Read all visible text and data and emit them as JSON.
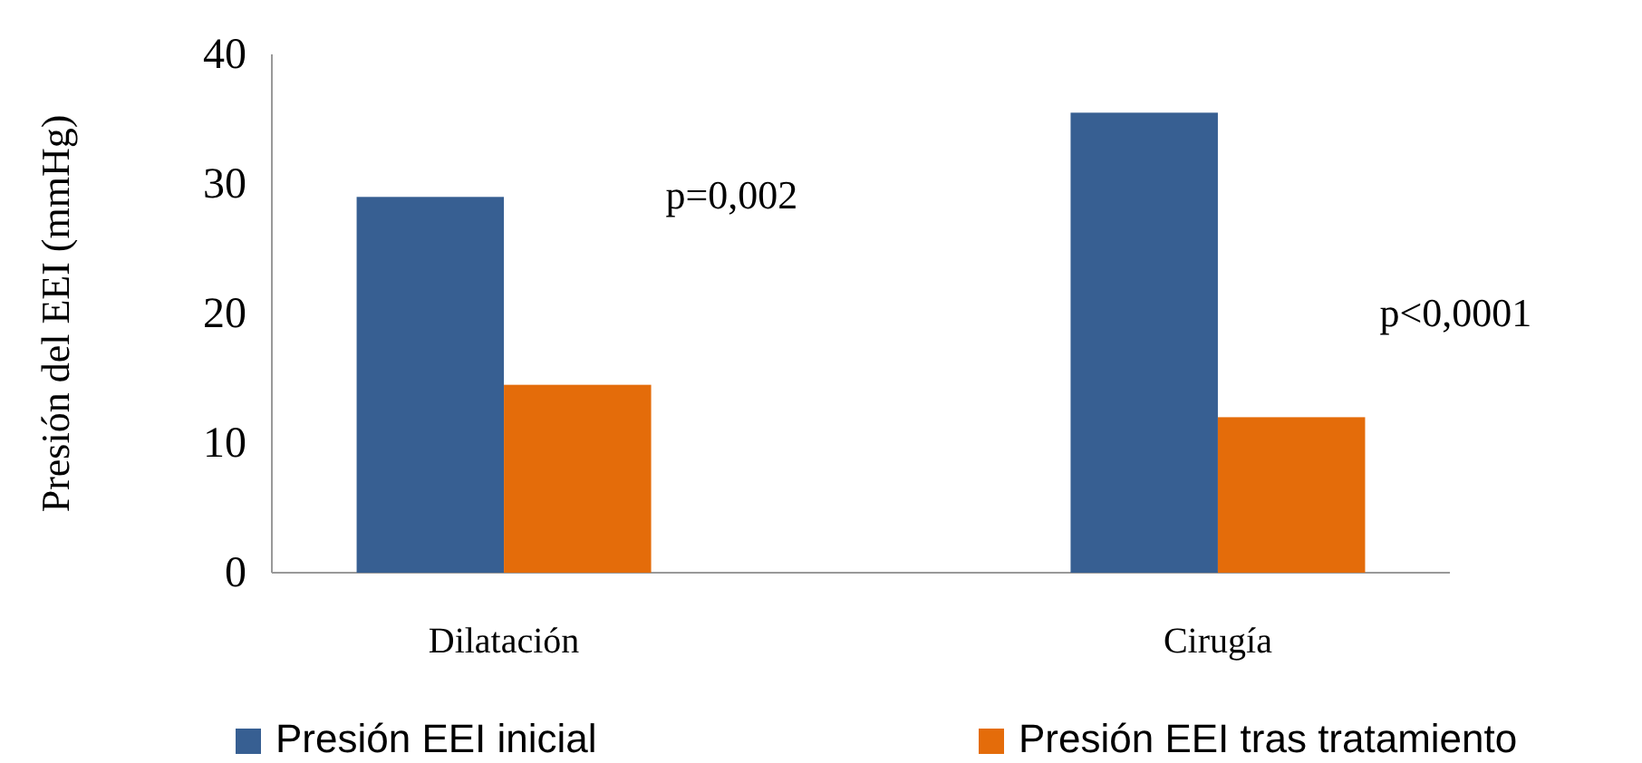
{
  "chart_data": {
    "type": "bar",
    "ylabel": "Presión del EEI (mmHg)",
    "categories": [
      "Dilatación",
      "Cirugía"
    ],
    "series": [
      {
        "name": "Presión EEI inicial",
        "color": "#375f92",
        "values": [
          29,
          35.5
        ]
      },
      {
        "name": "Presión EEI tras  tratamiento",
        "color": "#e46c0a",
        "values": [
          14.5,
          12
        ]
      }
    ],
    "ylim": [
      0,
      40
    ],
    "yticks": [
      0,
      10,
      20,
      30,
      40
    ],
    "grid": false,
    "legend": "bottom",
    "annotations": [
      "p=0,002",
      "p<0,0001"
    ]
  }
}
